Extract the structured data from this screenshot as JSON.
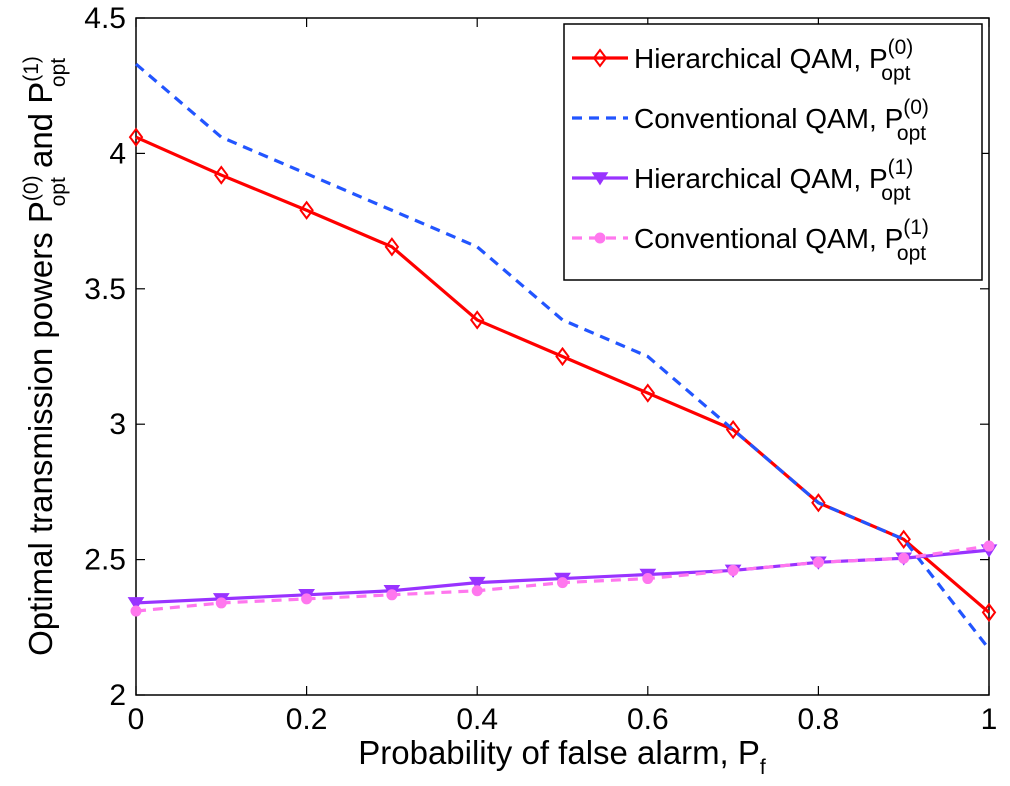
{
  "chart_data": {
    "type": "line",
    "x": [
      0,
      0.1,
      0.2,
      0.3,
      0.4,
      0.5,
      0.6,
      0.7,
      0.8,
      0.9,
      1
    ],
    "xlim": [
      0,
      1
    ],
    "ylim": [
      2,
      4.5
    ],
    "xticks": [
      0,
      0.2,
      0.4,
      0.6,
      0.8,
      1
    ],
    "xtick_labels": [
      "0",
      "0.2",
      "0.4",
      "0.6",
      "0.8",
      "1"
    ],
    "yticks": [
      2,
      2.5,
      3,
      3.5,
      4,
      4.5
    ],
    "ytick_labels": [
      "2",
      "2.5",
      "3",
      "3.5",
      "4",
      "4.5"
    ],
    "xlabel": {
      "main": "Probability of false alarm, P",
      "sub": "f"
    },
    "ylabel": {
      "prefix": "Optimal transmission powers P",
      "sup0": "(0)",
      "sub0": "opt",
      "mid": " and P",
      "sup1": "(1)",
      "sub1": "opt"
    },
    "legend_position": "top-right",
    "series": [
      {
        "name": "Hierarchical QAM, P_opt^(0)",
        "label_main": "Hierarchical QAM, P",
        "sup": "(0)",
        "sub": "opt",
        "color": "#ff0000",
        "line": "solid",
        "marker": "diamond",
        "values": [
          4.06,
          3.92,
          3.79,
          3.655,
          3.385,
          3.25,
          3.115,
          2.98,
          2.71,
          2.575,
          2.305
        ]
      },
      {
        "name": "Conventional QAM, P_opt^(0)",
        "label_main": "Conventional QAM, P",
        "sup": "(0)",
        "sub": "opt",
        "color": "#2255ff",
        "line": "dashed",
        "marker": "none",
        "values": [
          4.33,
          4.06,
          3.925,
          3.79,
          3.655,
          3.385,
          3.25,
          2.98,
          2.71,
          2.575,
          2.17
        ]
      },
      {
        "name": "Hierarchical QAM, P_opt^(1)",
        "label_main": "Hierarchical QAM, P",
        "sup": "(1)",
        "sub": "opt",
        "color": "#9933ff",
        "line": "solid",
        "marker": "triangle-down",
        "values": [
          2.34,
          2.355,
          2.37,
          2.385,
          2.415,
          2.43,
          2.445,
          2.46,
          2.49,
          2.505,
          2.535
        ]
      },
      {
        "name": "Conventional QAM, P_opt^(1)",
        "label_main": "Conventional QAM, P",
        "sup": "(1)",
        "sub": "opt",
        "color": "#ff77ee",
        "line": "dashed",
        "marker": "circle",
        "values": [
          2.31,
          2.34,
          2.355,
          2.37,
          2.385,
          2.415,
          2.43,
          2.46,
          2.49,
          2.505,
          2.55
        ]
      }
    ]
  }
}
